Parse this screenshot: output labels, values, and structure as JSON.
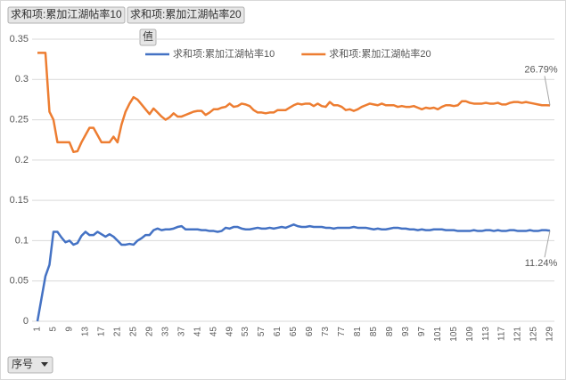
{
  "pivot_buttons": {
    "value_fields": [
      "求和项:累加江湖帖率10",
      "求和项:累加江湖帖率20"
    ],
    "values_button": "值",
    "row_field": "序号"
  },
  "chart_data": {
    "type": "line",
    "grid": true,
    "legend": "top",
    "ylim": [
      0,
      0.35
    ],
    "yticks": [
      0,
      0.05,
      0.1,
      0.15,
      0.2,
      0.25,
      0.3,
      0.35
    ],
    "categories": [
      1,
      null,
      null,
      null,
      5,
      null,
      null,
      null,
      9,
      null,
      null,
      null,
      13,
      null,
      null,
      null,
      17,
      null,
      null,
      null,
      21,
      null,
      null,
      null,
      25,
      null,
      null,
      null,
      29,
      null,
      null,
      null,
      33,
      null,
      null,
      null,
      37,
      null,
      null,
      null,
      41,
      null,
      null,
      null,
      45,
      null,
      null,
      null,
      49,
      null,
      null,
      null,
      53,
      null,
      null,
      null,
      57,
      null,
      null,
      null,
      61,
      null,
      null,
      null,
      65,
      null,
      null,
      null,
      69,
      null,
      null,
      null,
      73,
      null,
      null,
      null,
      77,
      null,
      null,
      null,
      81,
      null,
      null,
      null,
      85,
      null,
      null,
      null,
      89,
      null,
      null,
      null,
      93,
      null,
      null,
      null,
      97,
      null,
      null,
      null,
      101,
      null,
      null,
      null,
      105,
      null,
      null,
      null,
      109,
      null,
      null,
      null,
      113,
      null,
      null,
      null,
      117,
      null,
      null,
      null,
      121,
      null,
      null,
      null,
      125,
      null,
      null,
      null,
      129
    ],
    "series": [
      {
        "name": "求和项:累加江湖帖率10",
        "color": "#4472c4",
        "values": [
          0,
          0.028,
          0.056,
          0.07,
          0.111,
          0.111,
          0.104,
          0.098,
          0.1,
          0.095,
          0.097,
          0.106,
          0.111,
          0.107,
          0.107,
          0.111,
          0.108,
          0.105,
          0.108,
          0.105,
          0.1,
          0.095,
          0.095,
          0.096,
          0.095,
          0.1,
          0.103,
          0.107,
          0.107,
          0.113,
          0.115,
          0.113,
          0.114,
          0.114,
          0.115,
          0.117,
          0.118,
          0.114,
          0.114,
          0.114,
          0.114,
          0.113,
          0.113,
          0.112,
          0.112,
          0.111,
          0.112,
          0.116,
          0.115,
          0.117,
          0.117,
          0.115,
          0.114,
          0.114,
          0.115,
          0.116,
          0.115,
          0.115,
          0.116,
          0.115,
          0.116,
          0.117,
          0.116,
          0.118,
          0.12,
          0.118,
          0.117,
          0.117,
          0.118,
          0.117,
          0.117,
          0.117,
          0.116,
          0.116,
          0.115,
          0.116,
          0.116,
          0.116,
          0.116,
          0.117,
          0.116,
          0.116,
          0.116,
          0.115,
          0.114,
          0.115,
          0.114,
          0.114,
          0.115,
          0.116,
          0.116,
          0.115,
          0.115,
          0.114,
          0.114,
          0.113,
          0.114,
          0.113,
          0.113,
          0.114,
          0.114,
          0.114,
          0.113,
          0.113,
          0.113,
          0.112,
          0.112,
          0.112,
          0.112,
          0.113,
          0.112,
          0.112,
          0.113,
          0.113,
          0.112,
          0.113,
          0.112,
          0.112,
          0.113,
          0.113,
          0.112,
          0.112,
          0.112,
          0.113,
          0.112,
          0.112,
          0.113,
          0.113,
          0.1124
        ],
        "value_labels": [
          null,
          null,
          null,
          null,
          null,
          null,
          null,
          null,
          null,
          null,
          null,
          null,
          null,
          null,
          null,
          null,
          null,
          null,
          null,
          null,
          null,
          null,
          null,
          null,
          null,
          null,
          null,
          null,
          null,
          null,
          null,
          null,
          null,
          null,
          null,
          null,
          null,
          null,
          null,
          null,
          null,
          null,
          null,
          null,
          null,
          null,
          null,
          null,
          null,
          null,
          null,
          null,
          null,
          null,
          null,
          null,
          null,
          null,
          null,
          null,
          null,
          null,
          null,
          null,
          null,
          null,
          null,
          null,
          null,
          null,
          null,
          null,
          null,
          null,
          null,
          null,
          null,
          null,
          null,
          null,
          null,
          null,
          null,
          null,
          null,
          null,
          null,
          null,
          null,
          null,
          null,
          null,
          null,
          null,
          null,
          null,
          null,
          null,
          null,
          null,
          null,
          null,
          null,
          null,
          null,
          null,
          null,
          null,
          null,
          null,
          null,
          null,
          null,
          null,
          null,
          null,
          null,
          null,
          null,
          null,
          null,
          null,
          null,
          null,
          null,
          null,
          null,
          null,
          "11.24%"
        ]
      },
      {
        "name": "求和项:累加江湖帖率20",
        "color": "#ed7d31",
        "values": [
          0.333,
          0.333,
          0.333,
          0.26,
          0.25,
          0.222,
          0.222,
          0.222,
          0.222,
          0.21,
          0.211,
          0.222,
          0.231,
          0.24,
          0.24,
          0.231,
          0.222,
          0.222,
          0.222,
          0.229,
          0.222,
          0.244,
          0.26,
          0.27,
          0.278,
          0.275,
          0.269,
          0.263,
          0.257,
          0.264,
          0.259,
          0.254,
          0.25,
          0.253,
          0.258,
          0.254,
          0.254,
          0.256,
          0.258,
          0.26,
          0.261,
          0.261,
          0.256,
          0.259,
          0.263,
          0.263,
          0.265,
          0.266,
          0.27,
          0.266,
          0.267,
          0.27,
          0.269,
          0.267,
          0.262,
          0.259,
          0.259,
          0.258,
          0.259,
          0.259,
          0.262,
          0.262,
          0.262,
          0.265,
          0.268,
          0.27,
          0.269,
          0.27,
          0.27,
          0.267,
          0.27,
          0.267,
          0.266,
          0.272,
          0.268,
          0.268,
          0.266,
          0.262,
          0.263,
          0.261,
          0.263,
          0.266,
          0.268,
          0.27,
          0.269,
          0.268,
          0.27,
          0.268,
          0.268,
          0.268,
          0.266,
          0.267,
          0.266,
          0.266,
          0.267,
          0.265,
          0.263,
          0.265,
          0.264,
          0.265,
          0.263,
          0.266,
          0.268,
          0.268,
          0.267,
          0.268,
          0.273,
          0.273,
          0.271,
          0.27,
          0.27,
          0.27,
          0.271,
          0.27,
          0.27,
          0.271,
          0.269,
          0.269,
          0.271,
          0.272,
          0.272,
          0.271,
          0.272,
          0.271,
          0.27,
          0.269,
          0.268,
          0.268,
          0.2679
        ],
        "value_labels": [
          null,
          null,
          null,
          null,
          null,
          null,
          null,
          null,
          null,
          null,
          null,
          null,
          null,
          null,
          null,
          null,
          null,
          null,
          null,
          null,
          null,
          null,
          null,
          null,
          null,
          null,
          null,
          null,
          null,
          null,
          null,
          null,
          null,
          null,
          null,
          null,
          null,
          null,
          null,
          null,
          null,
          null,
          null,
          null,
          null,
          null,
          null,
          null,
          null,
          null,
          null,
          null,
          null,
          null,
          null,
          null,
          null,
          null,
          null,
          null,
          null,
          null,
          null,
          null,
          null,
          null,
          null,
          null,
          null,
          null,
          null,
          null,
          null,
          null,
          null,
          null,
          null,
          null,
          null,
          null,
          null,
          null,
          null,
          null,
          null,
          null,
          null,
          null,
          null,
          null,
          null,
          null,
          null,
          null,
          null,
          null,
          null,
          null,
          null,
          null,
          null,
          null,
          null,
          null,
          null,
          null,
          null,
          null,
          null,
          null,
          null,
          null,
          null,
          null,
          null,
          null,
          null,
          null,
          null,
          null,
          null,
          null,
          null,
          null,
          null,
          null,
          null,
          null,
          "26.79%"
        ]
      }
    ]
  }
}
